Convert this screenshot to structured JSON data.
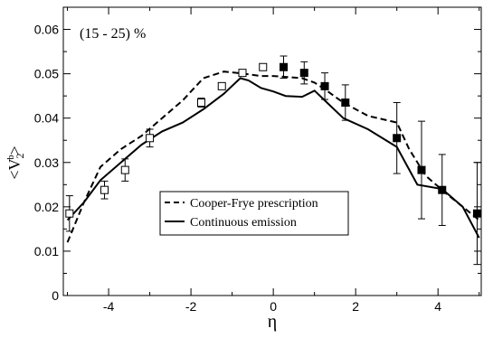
{
  "chart_data": {
    "type": "line",
    "title": "",
    "annotation": "(15 - 25) %",
    "xlabel": "η",
    "ylabel": {
      "base": "V",
      "sub": "2",
      "sup": "b"
    },
    "xlim": [
      -5.1,
      5.05
    ],
    "ylim": [
      0,
      0.065
    ],
    "x_ticks": [
      -4,
      -2,
      0,
      2,
      4
    ],
    "x_tick_labels": [
      "-4",
      "-2",
      "0",
      "2",
      "4"
    ],
    "y_ticks": [
      0,
      0.01,
      0.02,
      0.03,
      0.04,
      0.05,
      0.06
    ],
    "y_tick_labels": [
      "0",
      "0.01",
      "0.02",
      "0.03",
      "0.04",
      "0.05",
      "0.06"
    ],
    "grid": false,
    "legend_position": "lower-center",
    "series": [
      {
        "name": "Cooper-Frye prescription",
        "style": "dashed",
        "x": [
          -5.0,
          -4.6,
          -4.2,
          -3.7,
          -3.2,
          -2.7,
          -2.2,
          -1.7,
          -1.2,
          -0.7,
          -0.3,
          0.0,
          0.3,
          0.7,
          1.0,
          1.25,
          1.7,
          2.3,
          3.0,
          3.3,
          3.7,
          4.2,
          4.6,
          5.0
        ],
        "y": [
          0.012,
          0.021,
          0.029,
          0.033,
          0.036,
          0.04,
          0.044,
          0.049,
          0.0505,
          0.05,
          0.0495,
          0.0495,
          0.0493,
          0.049,
          0.048,
          0.0465,
          0.0435,
          0.0405,
          0.039,
          0.033,
          0.027,
          0.023,
          0.02,
          0.017
        ]
      },
      {
        "name": "Continuous emission",
        "style": "solid",
        "x": [
          -5.0,
          -4.6,
          -4.2,
          -3.7,
          -3.2,
          -2.7,
          -2.2,
          -1.7,
          -1.2,
          -0.8,
          -0.6,
          -0.3,
          0.0,
          0.3,
          0.7,
          1.0,
          1.25,
          1.7,
          2.3,
          3.0,
          3.5,
          4.1,
          4.6,
          5.0
        ],
        "y": [
          0.017,
          0.021,
          0.026,
          0.03,
          0.034,
          0.037,
          0.039,
          0.042,
          0.0455,
          0.049,
          0.0485,
          0.0468,
          0.046,
          0.045,
          0.0448,
          0.0462,
          0.044,
          0.04,
          0.0375,
          0.0335,
          0.025,
          0.024,
          0.02,
          0.013
        ]
      }
    ],
    "data_points": {
      "open": [
        {
          "x": -4.95,
          "y": 0.0185,
          "err": 0.004
        },
        {
          "x": -4.1,
          "y": 0.0238,
          "err": 0.002
        },
        {
          "x": -3.6,
          "y": 0.0283,
          "err": 0.0025
        },
        {
          "x": -3.0,
          "y": 0.0355,
          "err": 0.002
        },
        {
          "x": -1.75,
          "y": 0.0435,
          "err": 0.001
        },
        {
          "x": -1.25,
          "y": 0.0472,
          "err": 0.0005
        },
        {
          "x": -0.75,
          "y": 0.0502,
          "err": 0.0005
        },
        {
          "x": -0.25,
          "y": 0.0515,
          "err": 0.0005
        }
      ],
      "filled": [
        {
          "x": 0.25,
          "y": 0.0515,
          "err": 0.0025
        },
        {
          "x": 0.75,
          "y": 0.0502,
          "err": 0.0025
        },
        {
          "x": 1.25,
          "y": 0.0472,
          "err": 0.003
        },
        {
          "x": 1.75,
          "y": 0.0435,
          "err": 0.004
        },
        {
          "x": 3.0,
          "y": 0.0355,
          "err": 0.008
        },
        {
          "x": 3.6,
          "y": 0.0283,
          "err": 0.011
        },
        {
          "x": 4.1,
          "y": 0.0238,
          "err": 0.008
        },
        {
          "x": 4.95,
          "y": 0.0185,
          "err": 0.0115
        }
      ]
    }
  }
}
